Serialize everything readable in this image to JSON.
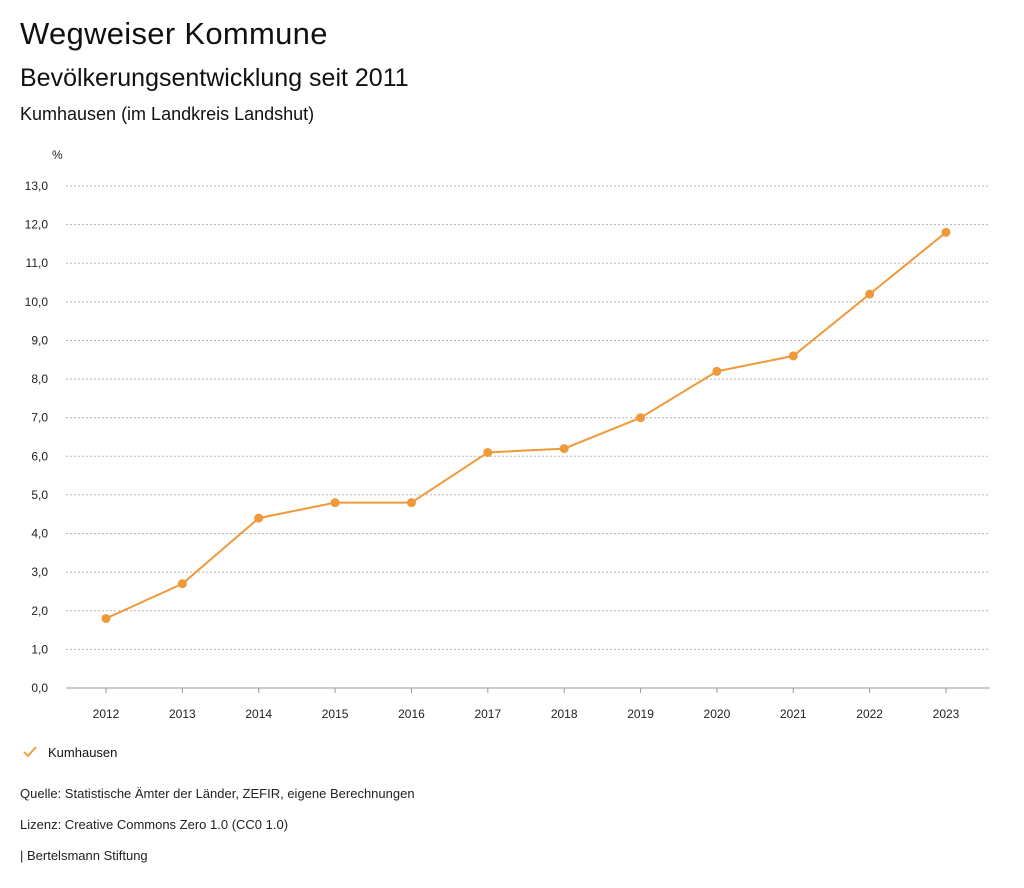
{
  "header": {
    "title": "Wegweiser Kommune",
    "subtitle": "Bevölkerungsentwicklung seit 2011",
    "region": "Kumhausen (im Landkreis Landshut)"
  },
  "colors": {
    "series": "#f0993a",
    "grid": "#b5b5b5",
    "axis": "#999999"
  },
  "chart_data": {
    "type": "line",
    "title": "Bevölkerungsentwicklung seit 2011",
    "ylabel": "%",
    "xlabel": "",
    "ylim": [
      0,
      13
    ],
    "yticks": [
      "0,0",
      "1,0",
      "2,0",
      "3,0",
      "4,0",
      "5,0",
      "6,0",
      "7,0",
      "8,0",
      "9,0",
      "10,0",
      "11,0",
      "12,0",
      "13,0"
    ],
    "categories": [
      "2012",
      "2013",
      "2014",
      "2015",
      "2016",
      "2017",
      "2018",
      "2019",
      "2020",
      "2021",
      "2022",
      "2023"
    ],
    "series": [
      {
        "name": "Kumhausen",
        "values": [
          1.8,
          2.7,
          4.4,
          4.8,
          4.8,
          6.1,
          6.2,
          7.0,
          8.2,
          8.6,
          10.2,
          11.8
        ]
      }
    ],
    "grid": true,
    "legend": "bottom-left"
  },
  "legend": {
    "label": "Kumhausen"
  },
  "footer": {
    "source": "Quelle: Statistische Ämter der Länder, ZEFIR, eigene Berechnungen",
    "license": "Lizenz: Creative Commons Zero 1.0 (CC0 1.0)",
    "brand": "| Bertelsmann Stiftung"
  }
}
